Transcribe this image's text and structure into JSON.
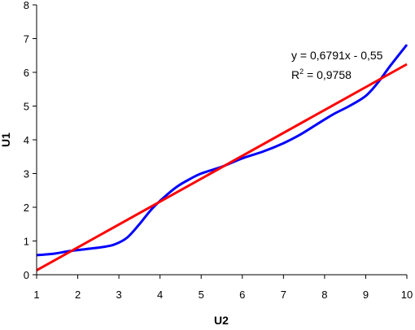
{
  "chart_data": {
    "type": "line",
    "xlabel": "U2",
    "ylabel": "U1",
    "xlim": [
      1,
      10
    ],
    "ylim": [
      0,
      8
    ],
    "x_ticks": [
      1,
      2,
      3,
      4,
      5,
      6,
      7,
      8,
      9,
      10
    ],
    "y_ticks": [
      0,
      1,
      2,
      3,
      4,
      5,
      6,
      7,
      8
    ],
    "grid": false,
    "series": [
      {
        "color": "#0000ff",
        "x": [
          1.0,
          1.4,
          1.8,
          2.2,
          2.6,
          2.9,
          3.2,
          3.5,
          3.8,
          4.1,
          4.4,
          4.7,
          5.0,
          5.5,
          6.0,
          6.5,
          7.0,
          7.4,
          7.8,
          8.2,
          8.6,
          9.0,
          9.3,
          9.6,
          10.0
        ],
        "y": [
          0.58,
          0.62,
          0.7,
          0.76,
          0.82,
          0.9,
          1.1,
          1.5,
          1.95,
          2.3,
          2.6,
          2.82,
          3.0,
          3.2,
          3.45,
          3.65,
          3.9,
          4.15,
          4.45,
          4.75,
          5.0,
          5.3,
          5.7,
          6.2,
          6.82
        ]
      },
      {
        "color": "#ff0000",
        "x": [
          1.0,
          10.0
        ],
        "y": [
          0.13,
          6.24
        ]
      }
    ],
    "annotations": {
      "equation": "y = 0,6791x - 0,55",
      "r2_label": "R",
      "r2_exponent": "2",
      "r2_value": " = 0,9758"
    }
  }
}
